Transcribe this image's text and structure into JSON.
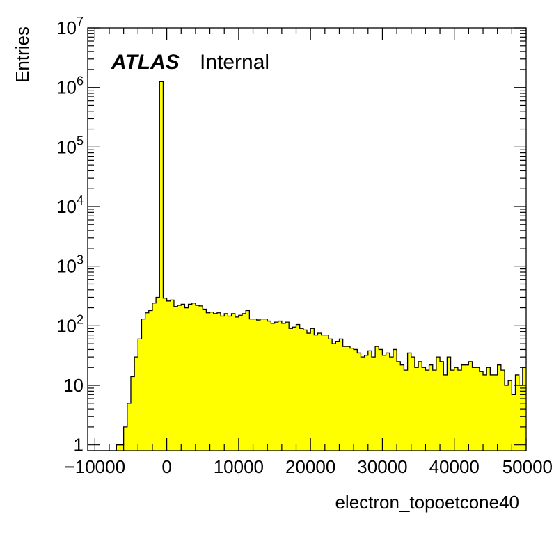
{
  "chart_data": {
    "type": "histogram",
    "xlabel": "electron_topoetcone40",
    "ylabel": "Entries",
    "label_bold": "ATLAS",
    "label_status": "Internal",
    "xlim": [
      -11000,
      50000
    ],
    "ylim": [
      0.8,
      10000000
    ],
    "yscale": "log",
    "bin_width": 500,
    "bin_start": -11000,
    "fill_color": "#ffff00",
    "line_color": "#000000",
    "x_ticks": [
      {
        "value": -10000,
        "label": "−10000"
      },
      {
        "value": 0,
        "label": "0"
      },
      {
        "value": 10000,
        "label": "10000"
      },
      {
        "value": 20000,
        "label": "20000"
      },
      {
        "value": 30000,
        "label": "30000"
      },
      {
        "value": 40000,
        "label": "40000"
      },
      {
        "value": 50000,
        "label": "50000"
      }
    ],
    "y_ticks": [
      {
        "value": 1,
        "base": "1",
        "exp": ""
      },
      {
        "value": 10,
        "base": "10",
        "exp": ""
      },
      {
        "value": 100,
        "base": "10",
        "exp": "2"
      },
      {
        "value": 1000,
        "base": "10",
        "exp": "3"
      },
      {
        "value": 10000,
        "base": "10",
        "exp": "4"
      },
      {
        "value": 100000,
        "base": "10",
        "exp": "5"
      },
      {
        "value": 1000000,
        "base": "10",
        "exp": "6"
      },
      {
        "value": 10000000,
        "base": "10",
        "exp": "7"
      }
    ],
    "values": [
      0,
      0,
      0,
      0,
      0,
      0,
      0,
      0,
      1,
      1,
      2,
      5,
      14,
      30,
      60,
      130,
      165,
      180,
      240,
      300,
      1250000,
      290,
      260,
      270,
      210,
      220,
      230,
      200,
      230,
      240,
      220,
      215,
      190,
      165,
      170,
      160,
      165,
      145,
      160,
      145,
      160,
      140,
      150,
      160,
      180,
      130,
      130,
      125,
      130,
      130,
      120,
      110,
      115,
      120,
      110,
      115,
      90,
      95,
      105,
      90,
      85,
      75,
      90,
      70,
      75,
      70,
      70,
      60,
      50,
      55,
      60,
      45,
      45,
      42,
      40,
      35,
      30,
      32,
      38,
      30,
      45,
      40,
      32,
      35,
      30,
      40,
      25,
      22,
      18,
      35,
      30,
      20,
      25,
      20,
      18,
      22,
      18,
      30,
      25,
      15,
      30,
      18,
      20,
      18,
      22,
      22,
      25,
      20,
      20,
      17,
      15,
      20,
      15,
      15,
      22,
      18,
      10,
      12,
      7,
      15,
      10,
      20
    ]
  }
}
